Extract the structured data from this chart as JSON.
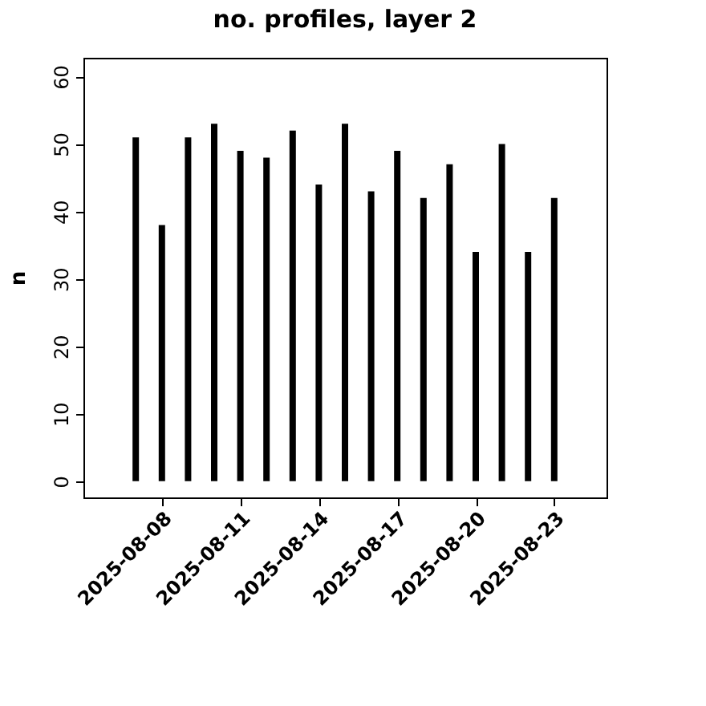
{
  "chart_data": {
    "type": "bar",
    "title": "no. profiles, layer 2",
    "ylabel": "n",
    "x": [
      "2025-08-07",
      "2025-08-08",
      "2025-08-09",
      "2025-08-10",
      "2025-08-11",
      "2025-08-12",
      "2025-08-13",
      "2025-08-14",
      "2025-08-15",
      "2025-08-16",
      "2025-08-17",
      "2025-08-18",
      "2025-08-19",
      "2025-08-20",
      "2025-08-21",
      "2025-08-22",
      "2025-08-23"
    ],
    "values": [
      51,
      38,
      51,
      53,
      49,
      48,
      52,
      44,
      53,
      43,
      49,
      42,
      47,
      34,
      50,
      34,
      42
    ],
    "color": "#000000",
    "xlim": [
      "2025-08-05",
      "2025-08-25"
    ],
    "xticks": [
      "2025-08-08",
      "2025-08-11",
      "2025-08-14",
      "2025-08-17",
      "2025-08-20",
      "2025-08-23"
    ],
    "ylim": [
      -2.4,
      62.8
    ],
    "yticks": [
      0,
      10,
      20,
      30,
      40,
      50,
      60
    ],
    "grid": false
  }
}
